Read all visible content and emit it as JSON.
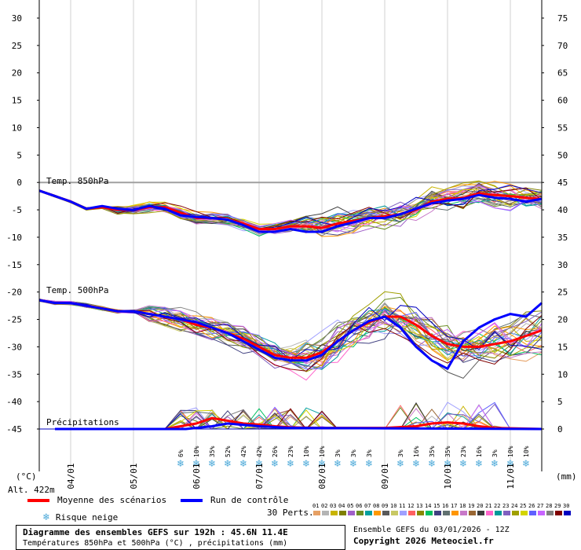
{
  "chart_data": {
    "type": "line",
    "title": "Diagramme des ensembles GEFS sur 192h : 45.6N 11.4E",
    "subtitle": "Températures 850hPa et 500hPa (°C) , précipitations (mm)",
    "left_axis": {
      "unit": "(°C)",
      "ticks": [
        30,
        25,
        20,
        15,
        10,
        5,
        0,
        -5,
        -10,
        -15,
        -20,
        -25,
        -30,
        -35,
        -40,
        -45
      ],
      "range": [
        -45,
        30
      ]
    },
    "right_axis": {
      "unit": "(mm)",
      "ticks": [
        75,
        70,
        65,
        60,
        55,
        50,
        45,
        40,
        35,
        30,
        25,
        20,
        15,
        10,
        5,
        0
      ],
      "range": [
        0,
        75
      ]
    },
    "x_range_hours": [
      0,
      192
    ],
    "x_ticks": [
      {
        "hour": 12,
        "label": "04/01"
      },
      {
        "hour": 36,
        "label": "05/01"
      },
      {
        "hour": 60,
        "label": "06/01"
      },
      {
        "hour": 84,
        "label": "07/01"
      },
      {
        "hour": 108,
        "label": "08/01"
      },
      {
        "hour": 132,
        "label": "09/01"
      },
      {
        "hour": 156,
        "label": "10/01"
      },
      {
        "hour": 180,
        "label": "11/01"
      }
    ],
    "section_labels": [
      "Temp. 850hPa",
      "Temp. 500hPa",
      "Précipitations"
    ],
    "series": [
      {
        "name": "Moyenne des scénarios",
        "color": "#ff0000",
        "t850": [
          [
            0,
            -1.5
          ],
          [
            6,
            -2.5
          ],
          [
            12,
            -3.5
          ],
          [
            18,
            -4.8
          ],
          [
            24,
            -4.5
          ],
          [
            30,
            -5
          ],
          [
            36,
            -5
          ],
          [
            42,
            -4.5
          ],
          [
            48,
            -4.5
          ],
          [
            54,
            -5.5
          ],
          [
            60,
            -6.5
          ],
          [
            66,
            -6.5
          ],
          [
            72,
            -6.8
          ],
          [
            78,
            -7.5
          ],
          [
            84,
            -8.5
          ],
          [
            90,
            -8.5
          ],
          [
            96,
            -8
          ],
          [
            102,
            -8
          ],
          [
            108,
            -8.3
          ],
          [
            114,
            -7.5
          ],
          [
            120,
            -7
          ],
          [
            126,
            -6.5
          ],
          [
            132,
            -6.2
          ],
          [
            138,
            -5.8
          ],
          [
            144,
            -5
          ],
          [
            150,
            -3.5
          ],
          [
            156,
            -3
          ],
          [
            162,
            -2.8
          ],
          [
            168,
            -2
          ],
          [
            174,
            -2.3
          ],
          [
            180,
            -2.5
          ],
          [
            186,
            -2.8
          ],
          [
            192,
            -3
          ]
        ],
        "t500": [
          [
            0,
            -21.5
          ],
          [
            6,
            -22
          ],
          [
            12,
            -22
          ],
          [
            18,
            -22.5
          ],
          [
            24,
            -23
          ],
          [
            30,
            -23.5
          ],
          [
            36,
            -23.5
          ],
          [
            42,
            -24
          ],
          [
            48,
            -24.5
          ],
          [
            54,
            -25
          ],
          [
            60,
            -26
          ],
          [
            66,
            -26.5
          ],
          [
            72,
            -27.5
          ],
          [
            78,
            -28.5
          ],
          [
            84,
            -30
          ],
          [
            90,
            -31.5
          ],
          [
            96,
            -32
          ],
          [
            102,
            -32
          ],
          [
            108,
            -31
          ],
          [
            114,
            -29
          ],
          [
            120,
            -27
          ],
          [
            126,
            -25.5
          ],
          [
            132,
            -24.5
          ],
          [
            138,
            -24.5
          ],
          [
            144,
            -26
          ],
          [
            150,
            -28
          ],
          [
            156,
            -29.5
          ],
          [
            162,
            -30
          ],
          [
            168,
            -30
          ],
          [
            174,
            -29.5
          ],
          [
            180,
            -29
          ],
          [
            186,
            -28
          ],
          [
            192,
            -27
          ]
        ],
        "precip": [
          [
            6,
            0
          ],
          [
            48,
            0
          ],
          [
            54,
            0.5
          ],
          [
            60,
            1
          ],
          [
            66,
            2
          ],
          [
            72,
            1.5
          ],
          [
            78,
            1
          ],
          [
            84,
            0.8
          ],
          [
            90,
            0.5
          ],
          [
            96,
            0.3
          ],
          [
            108,
            0.2
          ],
          [
            132,
            0.2
          ],
          [
            144,
            0.5
          ],
          [
            150,
            1
          ],
          [
            156,
            1.2
          ],
          [
            162,
            1
          ],
          [
            168,
            0.5
          ],
          [
            174,
            0.2
          ],
          [
            192,
            0
          ]
        ]
      },
      {
        "name": "Run de contrôle",
        "color": "#0000ff",
        "t850": [
          [
            0,
            -1.5
          ],
          [
            6,
            -2.5
          ],
          [
            12,
            -3.5
          ],
          [
            18,
            -4.8
          ],
          [
            24,
            -4.3
          ],
          [
            30,
            -4.8
          ],
          [
            36,
            -5
          ],
          [
            42,
            -4.3
          ],
          [
            48,
            -4.8
          ],
          [
            54,
            -6
          ],
          [
            60,
            -6.3
          ],
          [
            66,
            -6.5
          ],
          [
            72,
            -6.8
          ],
          [
            78,
            -7.8
          ],
          [
            84,
            -9
          ],
          [
            90,
            -9
          ],
          [
            96,
            -8.5
          ],
          [
            102,
            -9
          ],
          [
            108,
            -9
          ],
          [
            114,
            -8
          ],
          [
            120,
            -7.3
          ],
          [
            126,
            -6.5
          ],
          [
            132,
            -6.5
          ],
          [
            138,
            -5.8
          ],
          [
            144,
            -4.8
          ],
          [
            150,
            -3.8
          ],
          [
            156,
            -3.3
          ],
          [
            162,
            -3
          ],
          [
            168,
            -2.3
          ],
          [
            174,
            -2.8
          ],
          [
            180,
            -3
          ],
          [
            186,
            -3.5
          ],
          [
            192,
            -3
          ]
        ],
        "t500": [
          [
            0,
            -21.5
          ],
          [
            6,
            -22
          ],
          [
            12,
            -22
          ],
          [
            18,
            -22.5
          ],
          [
            24,
            -23
          ],
          [
            30,
            -23.5
          ],
          [
            36,
            -23.5
          ],
          [
            42,
            -24
          ],
          [
            48,
            -24.5
          ],
          [
            54,
            -25
          ],
          [
            60,
            -25.5
          ],
          [
            66,
            -26.5
          ],
          [
            72,
            -27.5
          ],
          [
            78,
            -29
          ],
          [
            84,
            -30.5
          ],
          [
            90,
            -32
          ],
          [
            96,
            -32.5
          ],
          [
            102,
            -32.5
          ],
          [
            108,
            -31.5
          ],
          [
            114,
            -29
          ],
          [
            120,
            -27
          ],
          [
            126,
            -25.3
          ],
          [
            132,
            -24.5
          ],
          [
            138,
            -26.5
          ],
          [
            144,
            -30
          ],
          [
            150,
            -32.5
          ],
          [
            156,
            -34
          ],
          [
            162,
            -29
          ],
          [
            168,
            -26.5
          ],
          [
            174,
            -25
          ],
          [
            180,
            -24
          ],
          [
            186,
            -24.5
          ],
          [
            192,
            -22
          ]
        ],
        "precip": [
          [
            6,
            0
          ],
          [
            56,
            0
          ],
          [
            66,
            0.5
          ],
          [
            72,
            1
          ],
          [
            84,
            0.5
          ],
          [
            96,
            0.2
          ],
          [
            192,
            0
          ]
        ]
      }
    ],
    "risk_snow": [
      {
        "hour": 54,
        "label": "6%"
      },
      {
        "hour": 60,
        "label": "10%"
      },
      {
        "hour": 66,
        "label": "35%"
      },
      {
        "hour": 72,
        "label": "52%"
      },
      {
        "hour": 78,
        "label": "42%"
      },
      {
        "hour": 84,
        "label": "42%"
      },
      {
        "hour": 90,
        "label": "26%"
      },
      {
        "hour": 96,
        "label": "23%"
      },
      {
        "hour": 102,
        "label": "10%"
      },
      {
        "hour": 108,
        "label": "10%"
      },
      {
        "hour": 114,
        "label": "3%"
      },
      {
        "hour": 120,
        "label": "3%"
      },
      {
        "hour": 126,
        "label": "3%"
      },
      {
        "hour": 138,
        "label": "3%"
      },
      {
        "hour": 144,
        "label": "16%"
      },
      {
        "hour": 150,
        "label": "35%"
      },
      {
        "hour": 156,
        "label": "35%"
      },
      {
        "hour": 162,
        "label": "23%"
      },
      {
        "hour": 168,
        "label": "16%"
      },
      {
        "hour": 174,
        "label": "3%"
      },
      {
        "hour": 180,
        "label": "10%"
      },
      {
        "hour": 186,
        "label": "10%"
      }
    ],
    "grid": true
  },
  "labels": {
    "alt": "Alt. 422m",
    "legend_mean": "Moyenne des scénarios",
    "legend_control": "Run de contrôle",
    "legend_snow": "Risque neige",
    "perts": "30 Perts.",
    "ensemble_line": "Ensemble GEFS du 03/01/2026 - 12Z",
    "copyright": "Copyright 2026 Meteociel.fr"
  },
  "perturbations": {
    "numbers": [
      "01",
      "02",
      "03",
      "04",
      "05",
      "06",
      "07",
      "08",
      "09",
      "10",
      "11",
      "12",
      "13",
      "14",
      "15",
      "16",
      "17",
      "18",
      "19",
      "20",
      "21",
      "22",
      "23",
      "24",
      "25",
      "26",
      "27",
      "28",
      "29",
      "30"
    ],
    "colors": [
      "#e6a064",
      "#b4b4b4",
      "#c8b400",
      "#7f7f00",
      "#a060c8",
      "#6b8e23",
      "#00a0a0",
      "#ff9900",
      "#5a5a5a",
      "#c8c864",
      "#a0a0ff",
      "#ff6060",
      "#888800",
      "#00c060",
      "#404080",
      "#607070",
      "#ff9600",
      "#c878c8",
      "#996633",
      "#3c3c3c",
      "#ff66cc",
      "#009999",
      "#8060c0",
      "#a0a000",
      "#d4d400",
      "#6060ff",
      "#c864ff",
      "#808080",
      "#800000",
      "#0000c0"
    ]
  },
  "colors": {
    "frame": "#000000",
    "zero_line": "#a0a0a0",
    "grid": "#d0d0d0",
    "snow": "#4aa8d8"
  }
}
